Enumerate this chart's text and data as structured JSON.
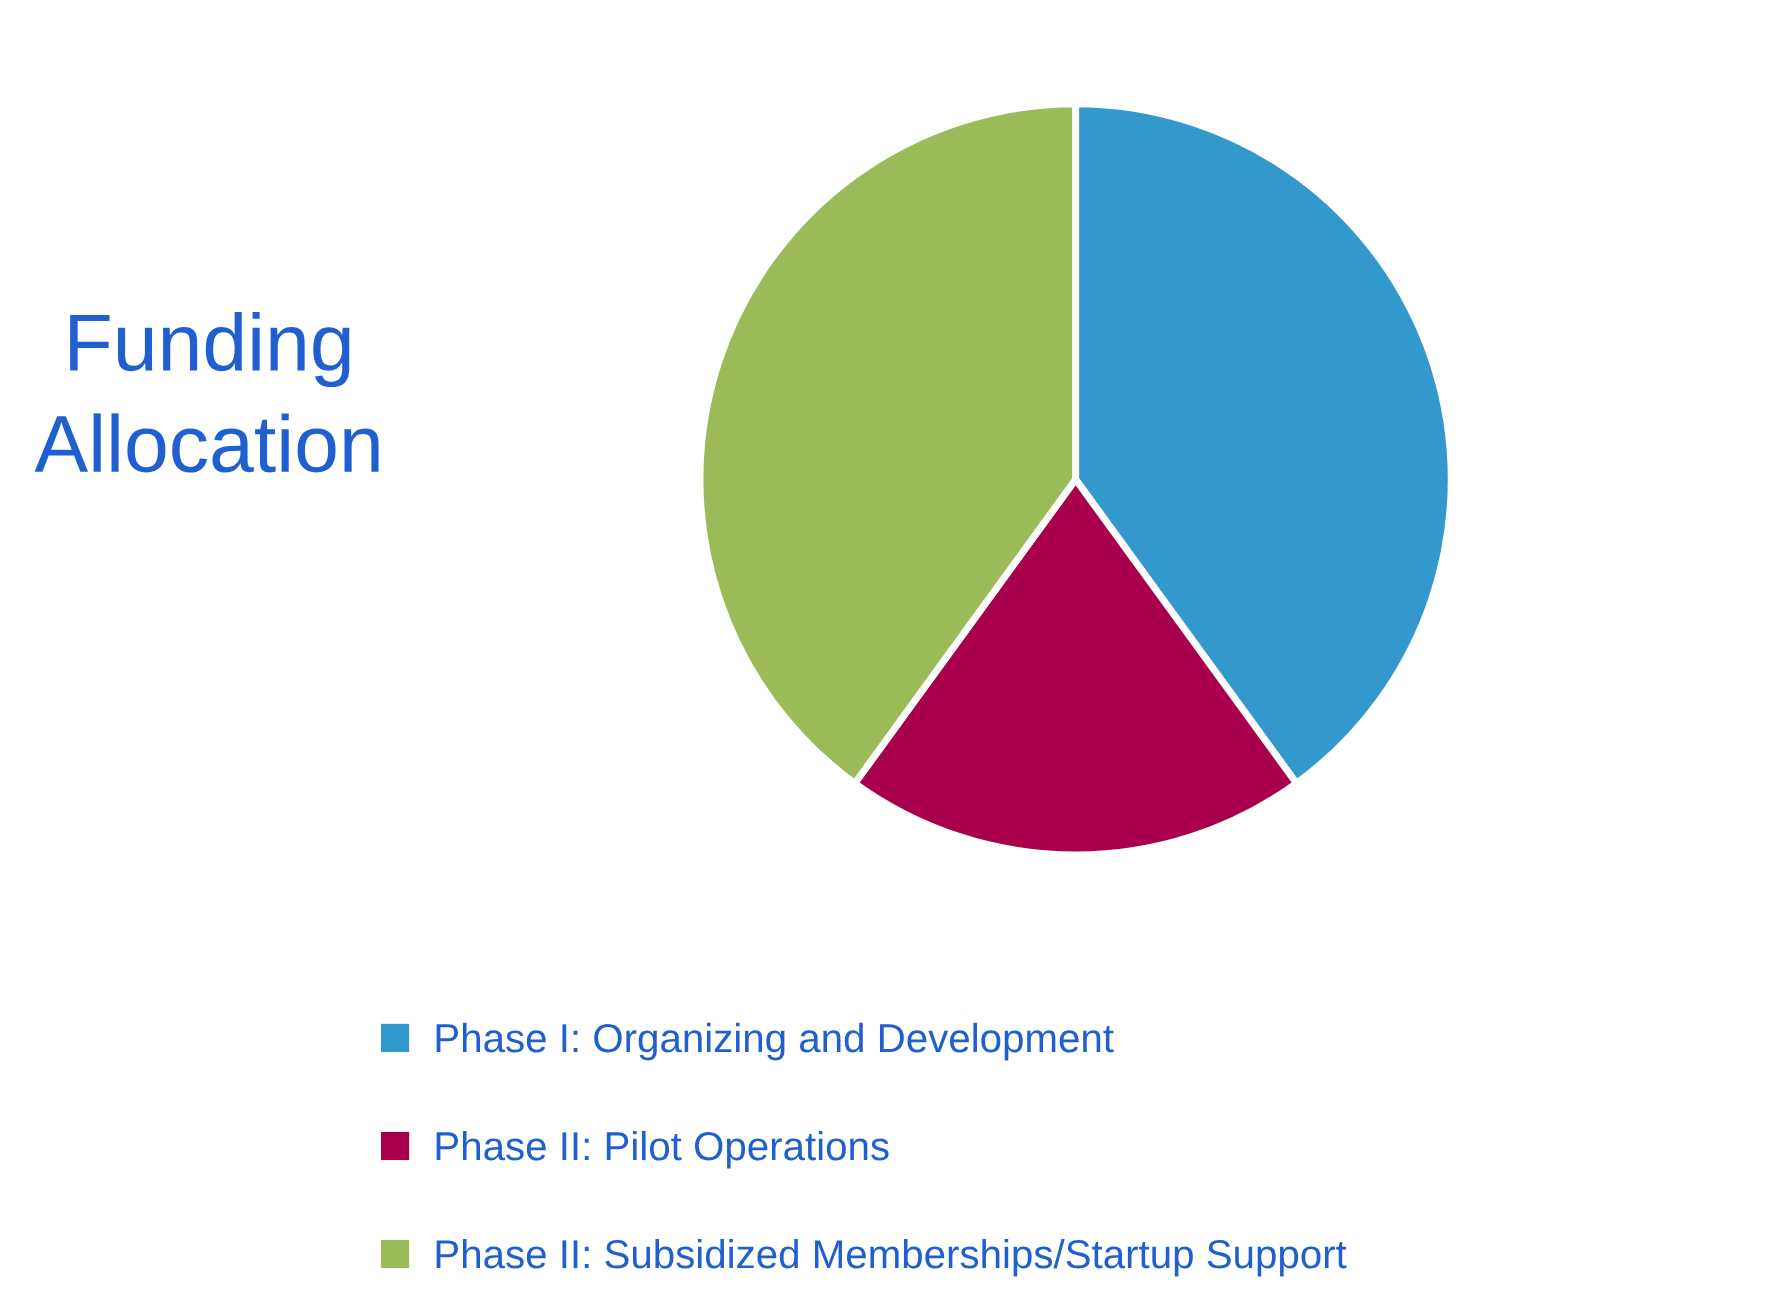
{
  "chart_data": {
    "type": "pie",
    "title": "Funding\nAllocation",
    "categories": [
      "Phase I: Organizing and Development",
      "Phase II: Pilot Operations",
      "Phase II: Subsidized Memberships/Startup Support"
    ],
    "values": [
      40,
      20,
      40
    ],
    "colors": [
      "#3399cc",
      "#a8004c",
      "#9bbb59"
    ],
    "legend": "bottom"
  }
}
